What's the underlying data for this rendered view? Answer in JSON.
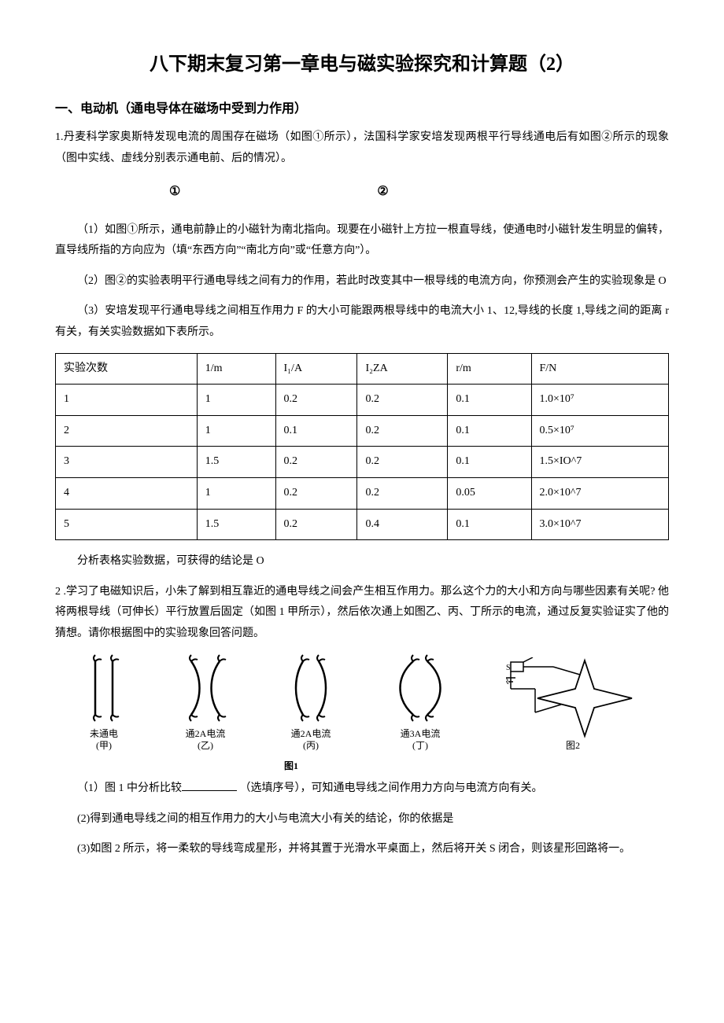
{
  "title": "八下期末复习第一章电与磁实验探究和计算题（2）",
  "section1": {
    "heading": "一、电动机（通电导体在磁场中受到力作用）",
    "q1_intro": "1.丹麦科学家奥斯特发现电流的周围存在磁场（如图①所示），法国科学家安培发现两根平行导线通电后有如图②所示的现象（图中实线、虚线分别表示通电前、后的情况）。",
    "circ1": "①",
    "circ2": "②",
    "q1_1": "（1）如图①所示，通电前静止的小磁针为南北指向。现要在小磁针上方拉一根直导线，使通电时小磁针发生明显的偏转，直导线所指的方向应为（填“东西方向”“南北方向”或“任意方向”）。",
    "q1_2": "（2）图②的实验表明平行通电导线之间有力的作用，若此时改变其中一根导线的电流方向，你预测会产生的实验现象是 O",
    "q1_3": "（3）安培发现平行通电导线之间相互作用力 F 的大小可能跟两根导线中的电流大小 1、12,导线的长度 1,导线之间的距离 r 有关，有关实验数据如下表所示。",
    "table": {
      "headers": [
        "实验次数",
        "1/m",
        "I₁/A",
        "I₂ZA",
        "r/m",
        "F/N"
      ],
      "rows": [
        [
          "1",
          "1",
          "0.2",
          "0.2",
          "0.1",
          "1.0×10⁷"
        ],
        [
          "2",
          "1",
          "0.1",
          "0.2",
          "0.1",
          "0.5×10⁷"
        ],
        [
          "3",
          "1.5",
          "0.2",
          "0.2",
          "0.1",
          "1.5×IO^7"
        ],
        [
          "4",
          "1",
          "0.2",
          "0.2",
          "0.05",
          "2.0×10^7"
        ],
        [
          "5",
          "1.5",
          "0.2",
          "0.4",
          "0.1",
          "3.0×10^7"
        ]
      ]
    },
    "q1_after": "分析表格实验数据，可获得的结论是 O",
    "q2_intro": "2 .学习了电磁知识后，小朱了解到相互靠近的通电导线之间会产生相互作用力。那么这个力的大小和方向与哪些因素有关呢? 他将两根导线（可伸长）平行放置后固定（如图 1 甲所示），然后依次通上如图乙、丙、丁所示的电流，通过反复实验证实了他的猜想。请你根据图中的实验现象回答问题。",
    "fig_labels": {
      "a_top": "未通电",
      "a_bot": "(甲)",
      "b_top": "通2A电流",
      "b_bot": "(乙)",
      "c_top": "通2A电流",
      "c_bot": "(丙)",
      "d_top": "通3A电流",
      "d_bot": "(丁)",
      "fig1": "图1",
      "fig2": "图2"
    },
    "q2_1a": "（1）图 1 中分析比较",
    "q2_1b": "（选填序号），可知通电导线之间作用力方向与电流方向有关。",
    "q2_2": "(2)得到通电导线之间的相互作用力的大小与电流大小有关的结论，你的依据是",
    "q2_3": "(3)如图 2 所示，将一柔软的导线弯成星形，并将其置于光滑水平桌面上，然后将开关 S 闭合，则该星形回路将一。"
  },
  "colors": {
    "text": "#000000",
    "bg": "#ffffff",
    "border": "#000000"
  }
}
